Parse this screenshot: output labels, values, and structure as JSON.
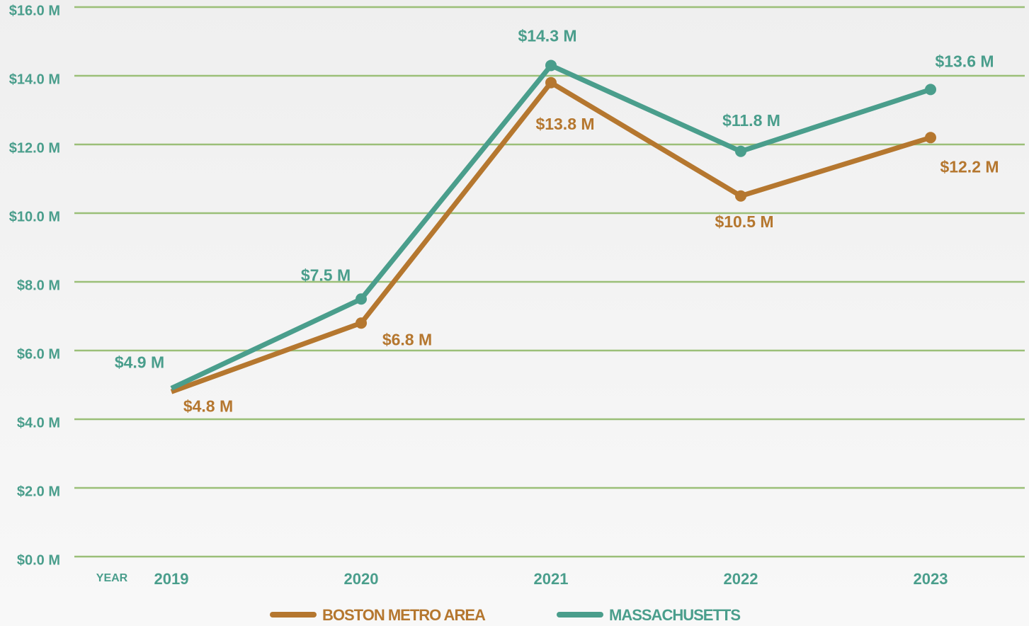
{
  "chart_data": {
    "type": "line",
    "x_label": "YEAR",
    "categories": [
      "2019",
      "2020",
      "2021",
      "2022",
      "2023"
    ],
    "series": [
      {
        "name": "BOSTON METRO AREA",
        "color": "#b5772f",
        "values": [
          4.8,
          6.8,
          13.8,
          10.5,
          12.2
        ],
        "value_labels": [
          "$4.8 M",
          "$6.8 M",
          "$13.8 M",
          "$10.5 M",
          "$12.2 M"
        ]
      },
      {
        "name": "MASSACHUSETTS",
        "color": "#4a9e8c",
        "values": [
          4.9,
          7.5,
          14.3,
          11.8,
          13.6
        ],
        "value_labels": [
          "$4.9 M",
          "$7.5 M",
          "$14.3 M",
          "$11.8 M",
          "$13.6 M"
        ]
      }
    ],
    "ylim": [
      0,
      16
    ],
    "yticks": [
      {
        "value": 0,
        "label": "$0.0 M"
      },
      {
        "value": 2,
        "label": "$2.0 M"
      },
      {
        "value": 4,
        "label": "$4.0 M"
      },
      {
        "value": 6,
        "label": "$6.0 M"
      },
      {
        "value": 8,
        "label": "$8.0 M"
      },
      {
        "value": 10,
        "label": "$10.0 M"
      },
      {
        "value": 12,
        "label": "$12.0 M"
      },
      {
        "value": 14,
        "label": "$14.0 M"
      },
      {
        "value": 16,
        "label": "$16.0 M"
      }
    ],
    "grid": true
  }
}
